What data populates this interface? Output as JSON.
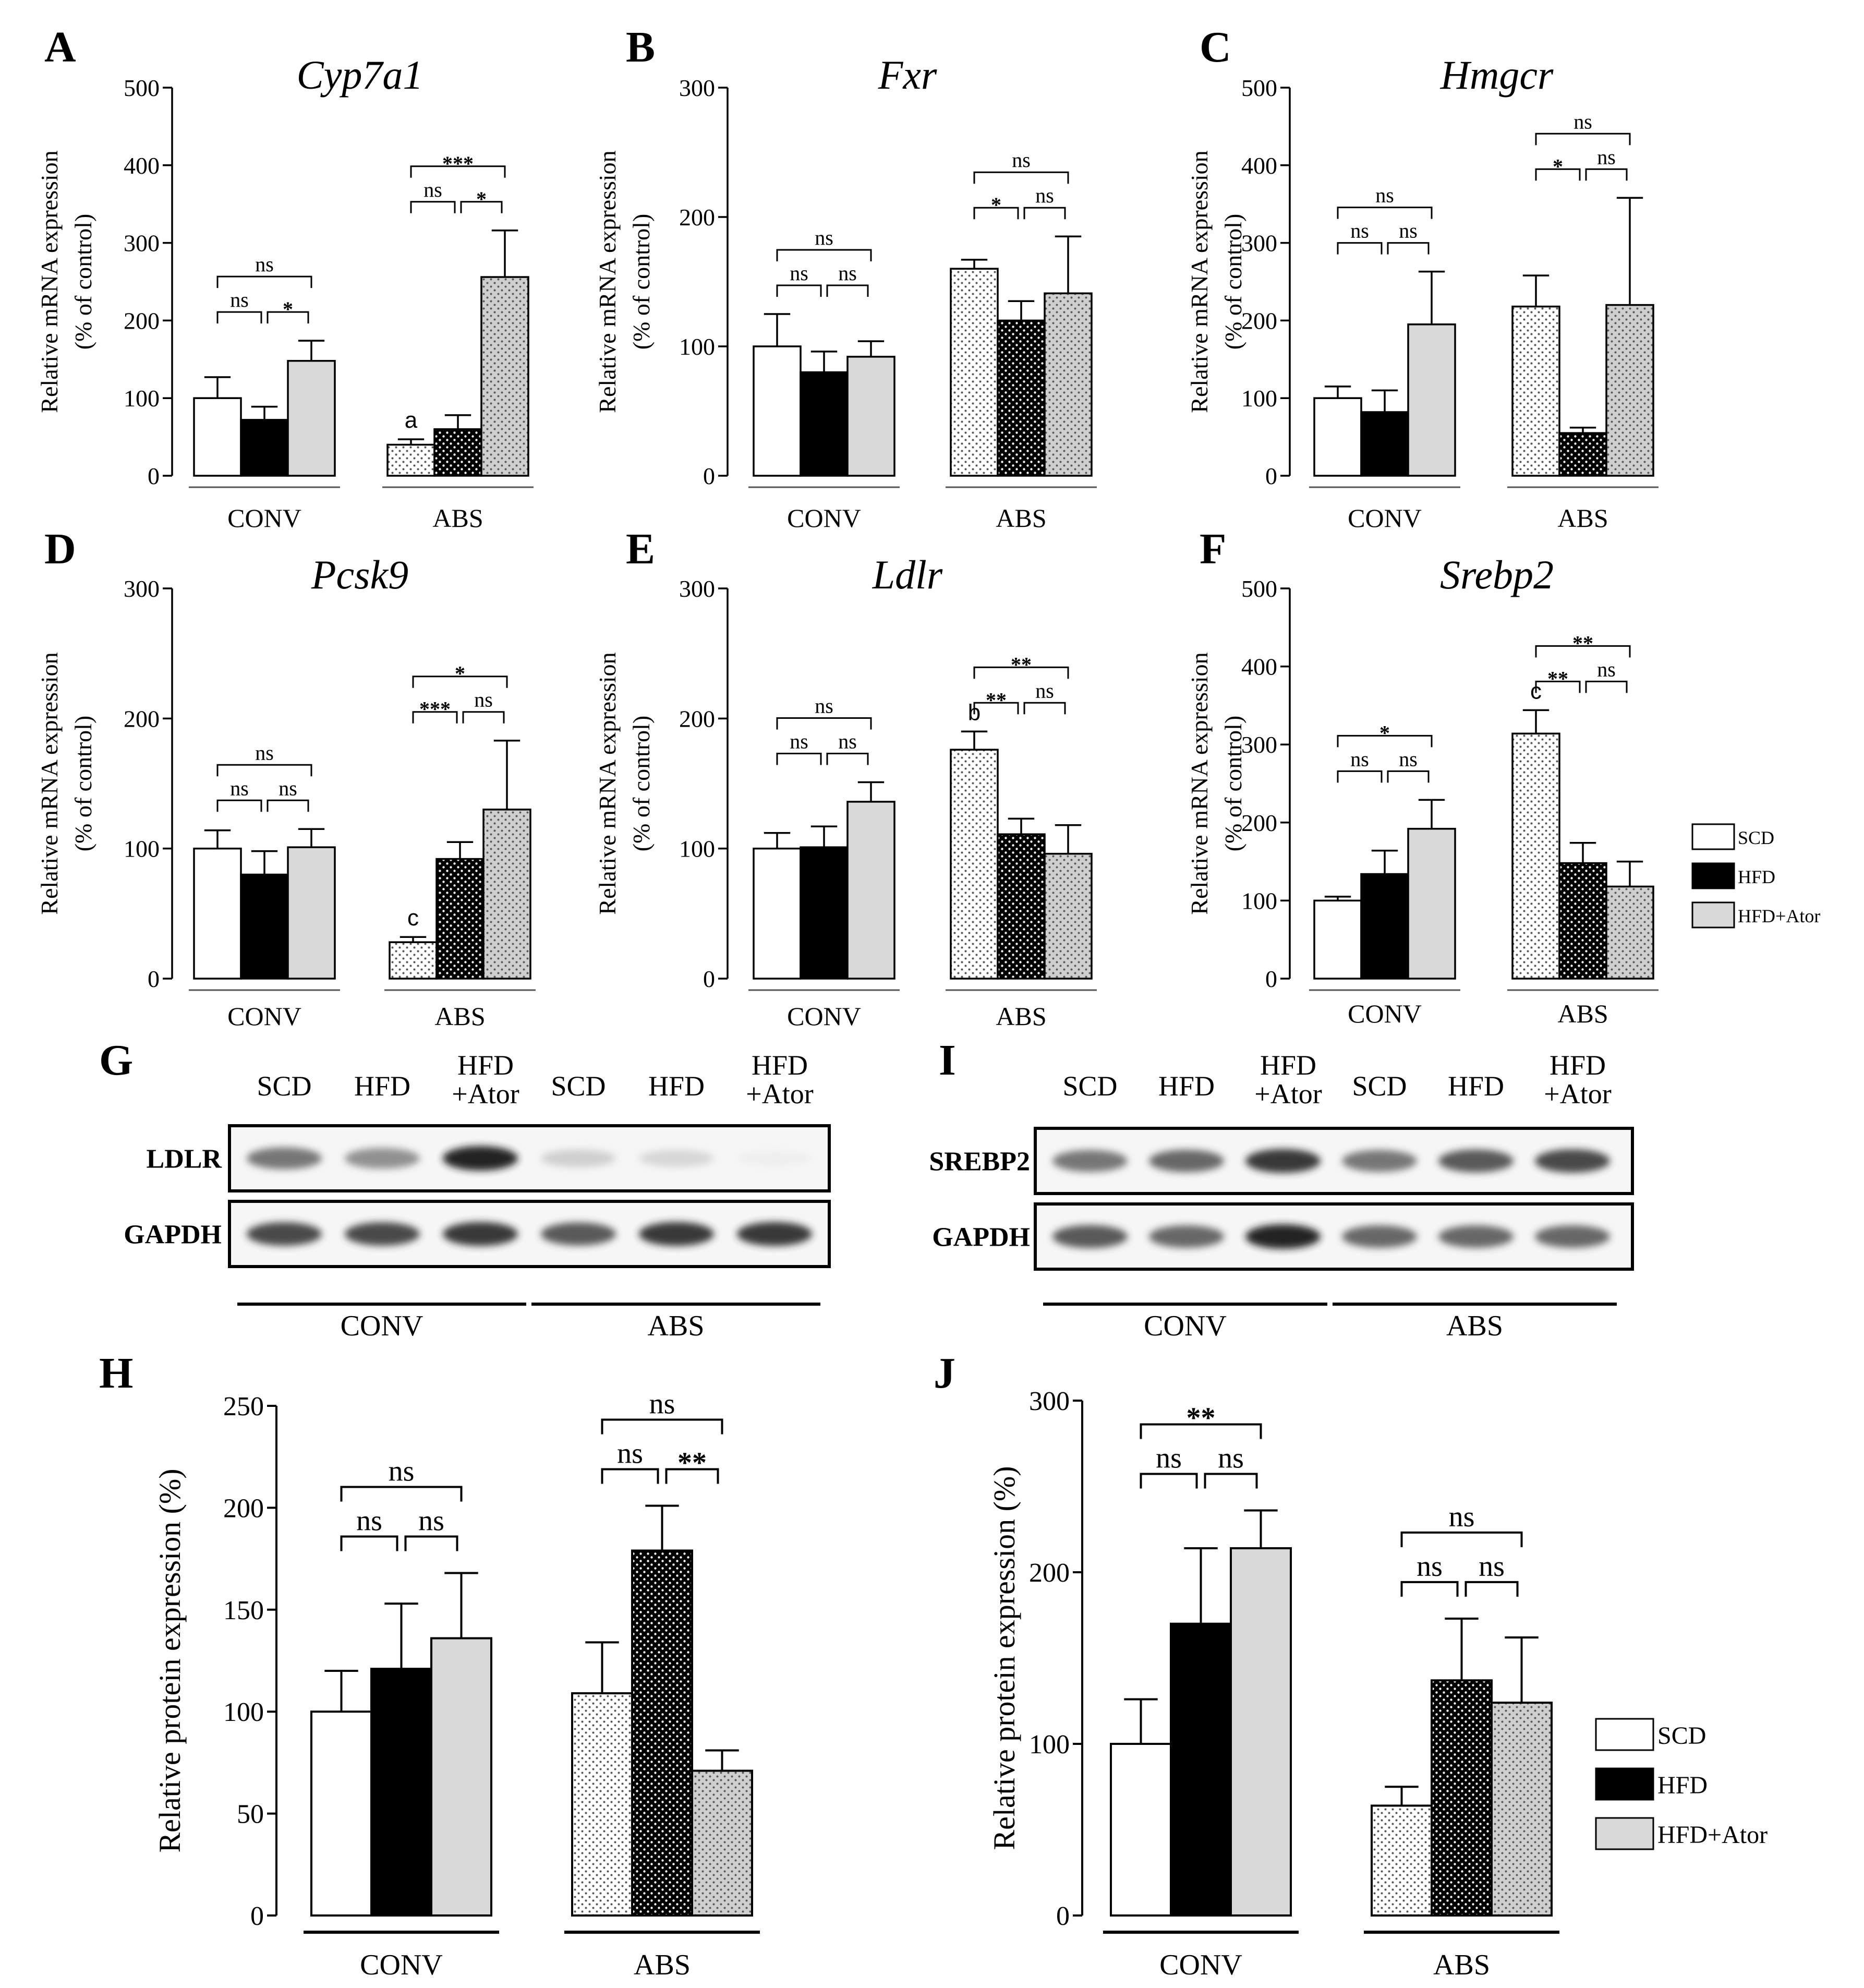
{
  "series_names": [
    "SCD",
    "HFD",
    "HFD+Ator"
  ],
  "colors": {
    "SCD": "#ffffff",
    "HFD": "#000000",
    "HFD+Ator": "#d9d9d9"
  },
  "chart_data": [
    {
      "panel": "A",
      "type": "bar",
      "title": "Cyp7a1",
      "ylabel_line1": "Relative mRNA  expression",
      "ylabel_line2": "(% of control)",
      "ylim": [
        0,
        500
      ],
      "yticks": [
        "0",
        "100",
        "200",
        "300",
        "400",
        "500"
      ],
      "groups": [
        "CONV",
        "ABS"
      ],
      "series": [
        {
          "name": "SCD",
          "values": [
            100,
            40
          ],
          "errors": [
            27,
            7
          ]
        },
        {
          "name": "HFD",
          "values": [
            72,
            60
          ],
          "errors": [
            17,
            18
          ]
        },
        {
          "name": "HFD+Ator",
          "values": [
            148,
            256
          ],
          "errors": [
            26,
            60
          ]
        }
      ],
      "bar_letters": [
        {
          "group": 1,
          "series": 0,
          "text": "a"
        }
      ],
      "brackets": [
        {
          "group": 0,
          "from": 0,
          "to": 1,
          "level": 0,
          "label": "ns"
        },
        {
          "group": 0,
          "from": 1,
          "to": 2,
          "level": 0,
          "label": "*"
        },
        {
          "group": 0,
          "from": 0,
          "to": 2,
          "level": 1,
          "label": "ns"
        },
        {
          "group": 1,
          "from": 0,
          "to": 1,
          "level": 0,
          "label": "ns"
        },
        {
          "group": 1,
          "from": 1,
          "to": 2,
          "level": 0,
          "label": "*"
        },
        {
          "group": 1,
          "from": 0,
          "to": 2,
          "level": 1,
          "label": "***"
        }
      ]
    },
    {
      "panel": "B",
      "type": "bar",
      "title": "Fxr",
      "ylabel_line1": "Relative mRNA  expression",
      "ylabel_line2": "(% of control)",
      "ylim": [
        0,
        300
      ],
      "yticks": [
        "0",
        "100",
        "200",
        "300"
      ],
      "groups": [
        "CONV",
        "ABS"
      ],
      "series": [
        {
          "name": "SCD",
          "values": [
            100,
            160
          ],
          "errors": [
            25,
            7
          ]
        },
        {
          "name": "HFD",
          "values": [
            80,
            120
          ],
          "errors": [
            16,
            15
          ]
        },
        {
          "name": "HFD+Ator",
          "values": [
            92,
            141
          ],
          "errors": [
            12,
            44
          ]
        }
      ],
      "bar_letters": [],
      "brackets": [
        {
          "group": 0,
          "from": 0,
          "to": 1,
          "level": 0,
          "label": "ns"
        },
        {
          "group": 0,
          "from": 1,
          "to": 2,
          "level": 0,
          "label": "ns"
        },
        {
          "group": 0,
          "from": 0,
          "to": 2,
          "level": 1,
          "label": "ns"
        },
        {
          "group": 1,
          "from": 0,
          "to": 1,
          "level": 0,
          "label": "*"
        },
        {
          "group": 1,
          "from": 1,
          "to": 2,
          "level": 0,
          "label": "ns"
        },
        {
          "group": 1,
          "from": 0,
          "to": 2,
          "level": 1,
          "label": "ns"
        }
      ]
    },
    {
      "panel": "C",
      "type": "bar",
      "title": "Hmgcr",
      "ylabel_line1": "Relative mRNA  expression",
      "ylabel_line2": "(% of control)",
      "ylim": [
        0,
        500
      ],
      "yticks": [
        "0",
        "100",
        "200",
        "300",
        "400",
        "500"
      ],
      "groups": [
        "CONV",
        "ABS"
      ],
      "series": [
        {
          "name": "SCD",
          "values": [
            100,
            218
          ],
          "errors": [
            15,
            40
          ]
        },
        {
          "name": "HFD",
          "values": [
            82,
            55
          ],
          "errors": [
            28,
            7
          ]
        },
        {
          "name": "HFD+Ator",
          "values": [
            195,
            220
          ],
          "errors": [
            68,
            138
          ]
        }
      ],
      "bar_letters": [],
      "brackets": [
        {
          "group": 0,
          "from": 0,
          "to": 1,
          "level": 0,
          "label": "ns"
        },
        {
          "group": 0,
          "from": 1,
          "to": 2,
          "level": 0,
          "label": "ns"
        },
        {
          "group": 0,
          "from": 0,
          "to": 2,
          "level": 1,
          "label": "ns"
        },
        {
          "group": 1,
          "from": 0,
          "to": 1,
          "level": 0,
          "label": "*"
        },
        {
          "group": 1,
          "from": 1,
          "to": 2,
          "level": 0,
          "label": "ns"
        },
        {
          "group": 1,
          "from": 0,
          "to": 2,
          "level": 1,
          "label": "ns"
        }
      ]
    },
    {
      "panel": "D",
      "type": "bar",
      "title": "Pcsk9",
      "ylabel_line1": "Relative mRNA  expression",
      "ylabel_line2": "(% of control)",
      "ylim": [
        0,
        300
      ],
      "yticks": [
        "0",
        "100",
        "200",
        "300"
      ],
      "groups": [
        "CONV",
        "ABS"
      ],
      "series": [
        {
          "name": "SCD",
          "values": [
            100,
            28
          ],
          "errors": [
            14,
            4
          ]
        },
        {
          "name": "HFD",
          "values": [
            80,
            92
          ],
          "errors": [
            18,
            13
          ]
        },
        {
          "name": "HFD+Ator",
          "values": [
            101,
            130
          ],
          "errors": [
            14,
            53
          ]
        }
      ],
      "bar_letters": [
        {
          "group": 1,
          "series": 0,
          "text": "c"
        }
      ],
      "brackets": [
        {
          "group": 0,
          "from": 0,
          "to": 1,
          "level": 0,
          "label": "ns"
        },
        {
          "group": 0,
          "from": 1,
          "to": 2,
          "level": 0,
          "label": "ns"
        },
        {
          "group": 0,
          "from": 0,
          "to": 2,
          "level": 1,
          "label": "ns"
        },
        {
          "group": 1,
          "from": 0,
          "to": 1,
          "level": 0,
          "label": "***"
        },
        {
          "group": 1,
          "from": 1,
          "to": 2,
          "level": 0,
          "label": "ns"
        },
        {
          "group": 1,
          "from": 0,
          "to": 2,
          "level": 1,
          "label": "*"
        }
      ]
    },
    {
      "panel": "E",
      "type": "bar",
      "title": "Ldlr",
      "ylabel_line1": "Relative mRNA  expression",
      "ylabel_line2": "(% of control)",
      "ylim": [
        0,
        300
      ],
      "yticks": [
        "0",
        "100",
        "200",
        "300"
      ],
      "groups": [
        "CONV",
        "ABS"
      ],
      "series": [
        {
          "name": "SCD",
          "values": [
            100,
            176
          ],
          "errors": [
            12,
            14
          ]
        },
        {
          "name": "HFD",
          "values": [
            101,
            111
          ],
          "errors": [
            16,
            12
          ]
        },
        {
          "name": "HFD+Ator",
          "values": [
            136,
            96
          ],
          "errors": [
            15,
            22
          ]
        }
      ],
      "bar_letters": [
        {
          "group": 1,
          "series": 0,
          "text": "b"
        }
      ],
      "brackets": [
        {
          "group": 0,
          "from": 0,
          "to": 1,
          "level": 0,
          "label": "ns"
        },
        {
          "group": 0,
          "from": 1,
          "to": 2,
          "level": 0,
          "label": "ns"
        },
        {
          "group": 0,
          "from": 0,
          "to": 2,
          "level": 1,
          "label": "ns"
        },
        {
          "group": 1,
          "from": 0,
          "to": 1,
          "level": 0,
          "label": "**"
        },
        {
          "group": 1,
          "from": 1,
          "to": 2,
          "level": 0,
          "label": "ns"
        },
        {
          "group": 1,
          "from": 0,
          "to": 2,
          "level": 1,
          "label": "**"
        }
      ]
    },
    {
      "panel": "F",
      "type": "bar",
      "title": "Srebp2",
      "ylabel_line1": "Relative mRNA  expression",
      "ylabel_line2": "(% of control)",
      "ylim": [
        0,
        500
      ],
      "yticks": [
        "0",
        "100",
        "200",
        "300",
        "400",
        "500"
      ],
      "groups": [
        "CONV",
        "ABS"
      ],
      "series": [
        {
          "name": "SCD",
          "values": [
            100,
            314
          ],
          "errors": [
            5,
            30
          ]
        },
        {
          "name": "HFD",
          "values": [
            134,
            148
          ],
          "errors": [
            30,
            26
          ]
        },
        {
          "name": "HFD+Ator",
          "values": [
            192,
            118
          ],
          "errors": [
            37,
            32
          ]
        }
      ],
      "bar_letters": [
        {
          "group": 1,
          "series": 0,
          "text": "c"
        }
      ],
      "brackets": [
        {
          "group": 0,
          "from": 0,
          "to": 1,
          "level": 0,
          "label": "ns"
        },
        {
          "group": 0,
          "from": 1,
          "to": 2,
          "level": 0,
          "label": "ns"
        },
        {
          "group": 0,
          "from": 0,
          "to": 2,
          "level": 1,
          "label": "*"
        },
        {
          "group": 1,
          "from": 0,
          "to": 1,
          "level": 0,
          "label": "**"
        },
        {
          "group": 1,
          "from": 1,
          "to": 2,
          "level": 0,
          "label": "ns"
        },
        {
          "group": 1,
          "from": 0,
          "to": 2,
          "level": 1,
          "label": "**"
        }
      ]
    },
    {
      "panel": "H",
      "type": "bar",
      "title": "",
      "ylabel": "Relative protein expression (%)",
      "ylim": [
        0,
        250
      ],
      "yticks": [
        "0",
        "50",
        "100",
        "150",
        "200",
        "250"
      ],
      "groups": [
        "CONV",
        "ABS"
      ],
      "series": [
        {
          "name": "SCD",
          "values": [
            100,
            109
          ],
          "errors": [
            20,
            25
          ]
        },
        {
          "name": "HFD",
          "values": [
            121,
            179
          ],
          "errors": [
            32,
            22
          ]
        },
        {
          "name": "HFD+Ator",
          "values": [
            136,
            71
          ],
          "errors": [
            32,
            10
          ]
        }
      ],
      "bar_letters": [],
      "brackets": [
        {
          "group": 0,
          "from": 0,
          "to": 1,
          "level": 0,
          "label": "ns"
        },
        {
          "group": 0,
          "from": 1,
          "to": 2,
          "level": 0,
          "label": "ns"
        },
        {
          "group": 0,
          "from": 0,
          "to": 2,
          "level": 1,
          "label": "ns"
        },
        {
          "group": 1,
          "from": 0,
          "to": 1,
          "level": 0,
          "label": "ns"
        },
        {
          "group": 1,
          "from": 1,
          "to": 2,
          "level": 0,
          "label": "**"
        },
        {
          "group": 1,
          "from": 0,
          "to": 2,
          "level": 1,
          "label": "ns"
        }
      ]
    },
    {
      "panel": "J",
      "type": "bar",
      "title": "",
      "ylabel": "Relative protein expression (%)",
      "ylim": [
        0,
        300
      ],
      "yticks": [
        "0",
        "100",
        "200",
        "300"
      ],
      "groups": [
        "CONV",
        "ABS"
      ],
      "series": [
        {
          "name": "SCD",
          "values": [
            100,
            64
          ],
          "errors": [
            26,
            11
          ]
        },
        {
          "name": "HFD",
          "values": [
            170,
            137
          ],
          "errors": [
            44,
            36
          ]
        },
        {
          "name": "HFD+Ator",
          "values": [
            214,
            124
          ],
          "errors": [
            22,
            38
          ]
        }
      ],
      "bar_letters": [],
      "brackets": [
        {
          "group": 0,
          "from": 0,
          "to": 1,
          "level": 0,
          "label": "ns"
        },
        {
          "group": 0,
          "from": 1,
          "to": 2,
          "level": 0,
          "label": "ns"
        },
        {
          "group": 0,
          "from": 0,
          "to": 2,
          "level": 1,
          "label": "**"
        },
        {
          "group": 1,
          "from": 0,
          "to": 1,
          "level": 0,
          "label": "ns"
        },
        {
          "group": 1,
          "from": 1,
          "to": 2,
          "level": 0,
          "label": "ns"
        },
        {
          "group": 1,
          "from": 0,
          "to": 2,
          "level": 1,
          "label": "ns"
        }
      ]
    }
  ],
  "blots": [
    {
      "panel": "G",
      "lanes": [
        {
          "l1": "SCD",
          "l2": ""
        },
        {
          "l1": "HFD",
          "l2": ""
        },
        {
          "l1": "HFD",
          "l2": "+Ator"
        },
        {
          "l1": "SCD",
          "l2": ""
        },
        {
          "l1": "HFD",
          "l2": ""
        },
        {
          "l1": "HFD",
          "l2": "+Ator"
        }
      ],
      "rows": [
        {
          "label": "LDLR",
          "intensity": [
            0.7,
            0.6,
            0.95,
            0.3,
            0.25,
            0.05
          ]
        },
        {
          "label": "GAPDH",
          "intensity": [
            0.85,
            0.85,
            0.9,
            0.8,
            0.9,
            0.9
          ]
        }
      ],
      "groups": [
        "CONV",
        "ABS"
      ]
    },
    {
      "panel": "I",
      "lanes": [
        {
          "l1": "SCD",
          "l2": ""
        },
        {
          "l1": "HFD",
          "l2": ""
        },
        {
          "l1": "HFD",
          "l2": "+Ator"
        },
        {
          "l1": "SCD",
          "l2": ""
        },
        {
          "l1": "HFD",
          "l2": ""
        },
        {
          "l1": "HFD",
          "l2": "+Ator"
        }
      ],
      "rows": [
        {
          "label": "SREBP2",
          "intensity": [
            0.7,
            0.75,
            0.9,
            0.7,
            0.8,
            0.85
          ]
        },
        {
          "label": "GAPDH",
          "intensity": [
            0.8,
            0.75,
            0.95,
            0.75,
            0.75,
            0.75
          ]
        }
      ],
      "groups": [
        "CONV",
        "ABS"
      ]
    }
  ]
}
